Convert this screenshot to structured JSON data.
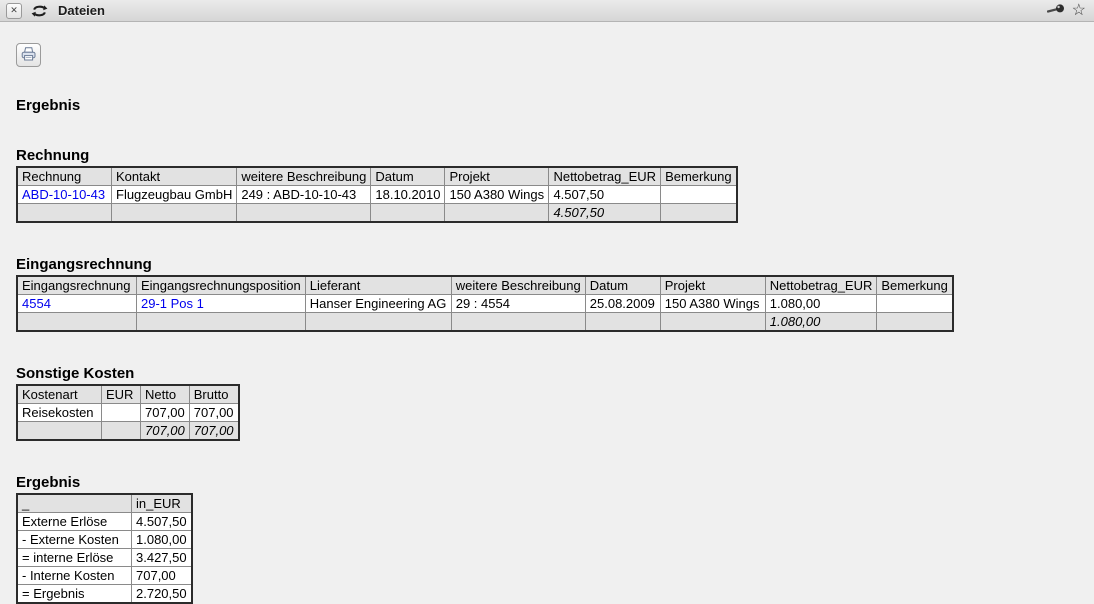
{
  "window": {
    "title": "Dateien",
    "close_glyph": "✕",
    "star_glyph": "☆"
  },
  "page_heading": "Ergebnis",
  "colors": {
    "link": "#0000ee",
    "header_bg": "#e2e2e2",
    "table_border": "#2b2b2b",
    "page_bg": "#f0f0f0"
  },
  "tables": [
    {
      "id": "rechnung",
      "heading": "Rechnung",
      "columns": [
        "Rechnung",
        "Kontakt",
        "weitere Beschreibung",
        "Datum",
        "Projekt",
        "Nettobetrag_EUR",
        "Bemerkung"
      ],
      "rows": [
        {
          "cells": [
            "ABD-10-10-43",
            "Flugzeugbau GmbH",
            "249 : ABD-10-10-43",
            "18.10.2010",
            "150 A380 Wings",
            "4.507,50",
            ""
          ],
          "link_cols": [
            0
          ]
        }
      ],
      "sum_row": [
        "",
        "",
        "",
        "",
        "",
        "4.507,50",
        ""
      ],
      "right_cols": [
        5
      ]
    },
    {
      "id": "eingangsrechnung",
      "heading": "Eingangsrechnung",
      "columns": [
        "Eingangsrechnung",
        "Eingangsrechnungsposition",
        "Lieferant",
        "weitere Beschreibung",
        "Datum",
        "Projekt",
        "Nettobetrag_EUR",
        "Bemerkung"
      ],
      "rows": [
        {
          "cells": [
            "4554",
            "29-1 Pos 1",
            "Hanser Engineering AG",
            "29 : 4554",
            "25.08.2009",
            "150 A380 Wings",
            "1.080,00",
            ""
          ],
          "link_cols": [
            0,
            1
          ]
        }
      ],
      "sum_row": [
        "",
        "",
        "",
        "",
        "",
        "",
        "1.080,00",
        ""
      ],
      "right_cols": [
        6
      ]
    },
    {
      "id": "sonstige-kosten",
      "heading": "Sonstige Kosten",
      "columns": [
        "Kostenart",
        "EUR",
        "Netto",
        "Brutto"
      ],
      "rows": [
        {
          "cells": [
            "Reisekosten",
            "",
            "707,00",
            "707,00"
          ],
          "link_cols": []
        }
      ],
      "sum_row": [
        "",
        "",
        "707,00",
        "707,00"
      ],
      "right_cols": [
        2,
        3
      ]
    },
    {
      "id": "ergebnis",
      "heading": "Ergebnis",
      "columns": [
        "_",
        "in_EUR"
      ],
      "rows": [
        {
          "cells": [
            "Externe Erlöse",
            "4.507,50"
          ],
          "link_cols": []
        },
        {
          "cells": [
            "- Externe Kosten",
            "1.080,00"
          ],
          "link_cols": []
        },
        {
          "cells": [
            "= interne Erlöse",
            "3.427,50"
          ],
          "link_cols": []
        },
        {
          "cells": [
            "- Interne Kosten",
            "707,00"
          ],
          "link_cols": []
        },
        {
          "cells": [
            "= Ergebnis",
            "2.720,50"
          ],
          "link_cols": []
        }
      ],
      "sum_row": null,
      "right_cols": [
        1
      ]
    }
  ]
}
